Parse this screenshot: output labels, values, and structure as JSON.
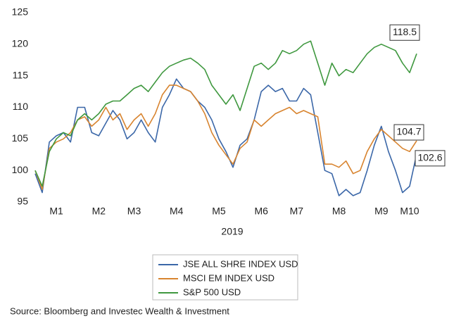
{
  "chart_data": {
    "type": "line",
    "xlabel": "2019",
    "source": "Source: Bloomberg and Investec Wealth & Investment",
    "categories": [
      null,
      null,
      null,
      "M1",
      null,
      null,
      null,
      null,
      null,
      "M2",
      null,
      null,
      null,
      null,
      "M3",
      null,
      null,
      null,
      null,
      null,
      "M4",
      null,
      null,
      null,
      null,
      null,
      "M5",
      null,
      null,
      null,
      null,
      null,
      "M6",
      null,
      null,
      null,
      null,
      "M7",
      null,
      null,
      null,
      null,
      null,
      "M8",
      null,
      null,
      null,
      null,
      null,
      "M9",
      null,
      null,
      null,
      "M10",
      null
    ],
    "ylim": [
      95,
      125
    ],
    "yticks": [
      95,
      100,
      105,
      110,
      115,
      120,
      125
    ],
    "grid": false,
    "legend": "bottom",
    "series": [
      {
        "name": "JSE ALL SHRE INDEX USD",
        "color": "#3b67a8",
        "end_label": "102.6",
        "values": [
          99.5,
          96.5,
          104.5,
          105.5,
          106,
          104.5,
          110,
          110,
          106,
          105.5,
          107.5,
          109.5,
          108,
          105,
          106,
          108,
          106,
          104.5,
          110,
          112,
          114.5,
          113,
          112.5,
          111,
          110,
          108,
          105,
          103,
          100.5,
          104,
          105,
          108,
          112.5,
          113.5,
          112.5,
          113,
          111,
          111,
          113,
          112,
          106,
          100,
          99.5,
          96,
          97,
          96,
          96.5,
          100,
          104,
          107,
          103,
          100,
          96.5,
          97.5,
          102.6
        ]
      },
      {
        "name": "MSCI EM INDEX USD",
        "color": "#d8842f",
        "end_label": "104.7",
        "values": [
          100,
          97,
          103.5,
          104.5,
          105,
          106,
          108,
          108.5,
          107,
          108,
          110,
          108,
          109,
          106.5,
          108,
          109,
          107,
          109,
          112,
          113.5,
          113.5,
          113,
          112.5,
          111,
          109,
          106,
          104,
          102.5,
          101,
          103.5,
          104.5,
          108,
          107,
          108,
          109,
          109.5,
          110,
          109,
          109.5,
          109,
          108.5,
          101,
          101,
          100.5,
          101.5,
          99.5,
          100,
          103,
          105,
          106.5,
          105.5,
          104.5,
          103.5,
          103,
          104.7
        ]
      },
      {
        "name": "S&P 500 USD",
        "color": "#3f983f",
        "end_label": "118.5",
        "values": [
          100,
          97.5,
          103,
          105,
          106,
          105.5,
          108,
          109,
          108,
          109,
          110.5,
          111,
          111,
          112,
          113,
          113.5,
          112.5,
          114,
          115.5,
          116.5,
          117,
          117.5,
          117.8,
          117,
          116,
          113.5,
          112,
          110.5,
          112,
          109.5,
          113,
          116.5,
          117,
          116,
          117,
          119,
          118.5,
          119,
          120,
          120.5,
          117,
          113.5,
          117,
          115,
          116,
          115.5,
          117,
          118.5,
          119.5,
          120,
          119.5,
          119,
          117,
          115.5,
          118.5
        ]
      }
    ]
  }
}
